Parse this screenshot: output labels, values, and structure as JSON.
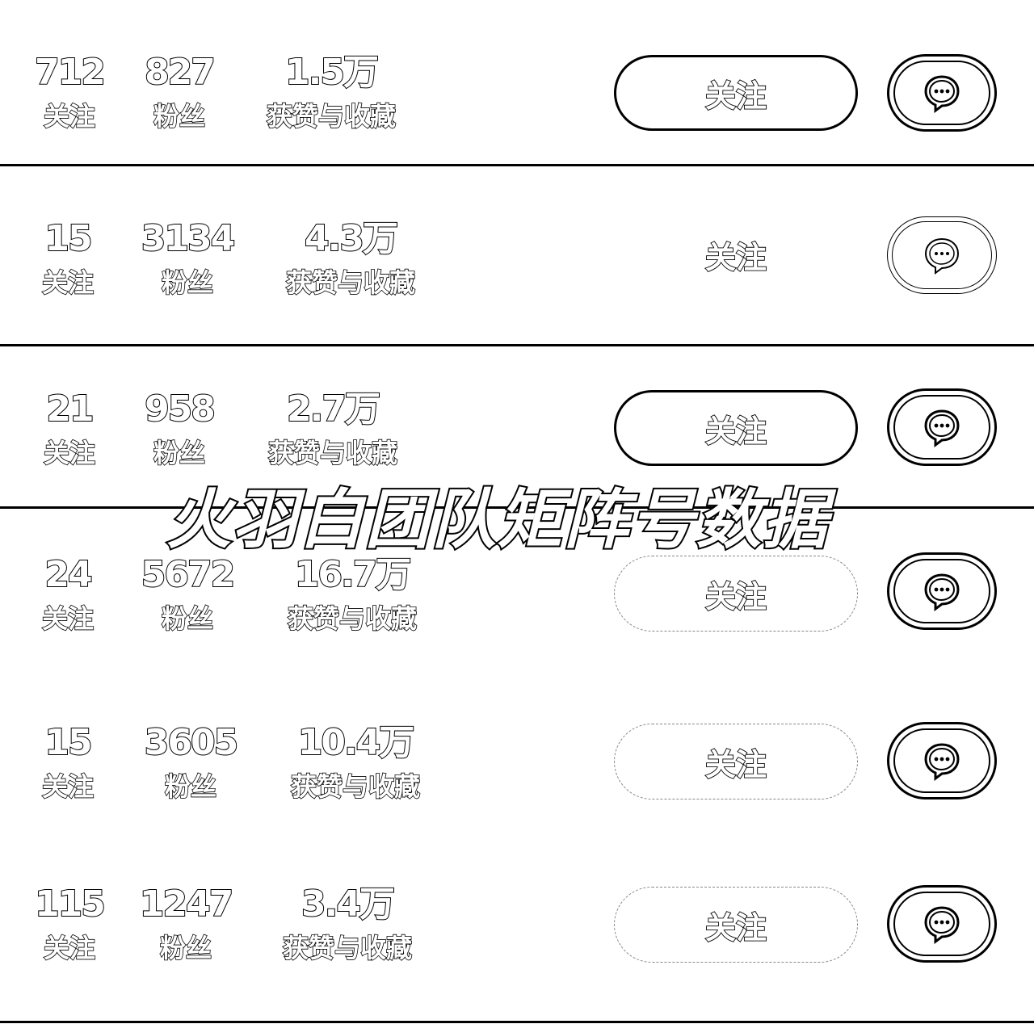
{
  "labels": {
    "following": "关注",
    "fans": "粉丝",
    "likes_collects": "获赞与收藏",
    "follow_button": "关注"
  },
  "watermark": "火羽白团队矩阵号数据",
  "icons": {
    "message": "chat-bubble-icon"
  },
  "colors": {
    "background": "#ffffff",
    "stroke": "#000000"
  },
  "rows": [
    {
      "following": "712",
      "fans": "827",
      "likes_collects": "1.5万"
    },
    {
      "following": "15",
      "fans": "3134",
      "likes_collects": "4.3万"
    },
    {
      "following": "21",
      "fans": "958",
      "likes_collects": "2.7万"
    },
    {
      "following": "24",
      "fans": "5672",
      "likes_collects": "16.7万"
    },
    {
      "following": "15",
      "fans": "3605",
      "likes_collects": "10.4万"
    },
    {
      "following": "115",
      "fans": "1247",
      "likes_collects": "3.4万"
    }
  ]
}
